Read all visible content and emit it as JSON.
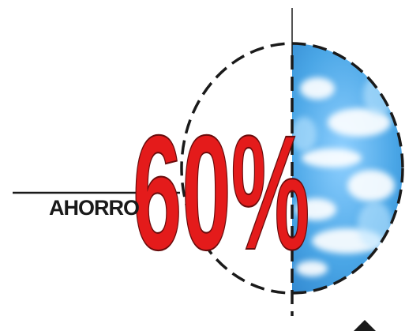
{
  "graphic": {
    "label": "AHORRO",
    "value_text": "60%",
    "percent": 60,
    "colors": {
      "number": "#e41b1b",
      "number_outline": "#6a0c0c",
      "text": "#1a1a1a",
      "lines": "#1a1a1a",
      "sky": "#4aa6e6",
      "sky_deep": "#2f86d2",
      "cloud": "#ffffff"
    },
    "icons": {
      "sky": "sky-clouds-half",
      "circle": "dashed-circle"
    }
  }
}
